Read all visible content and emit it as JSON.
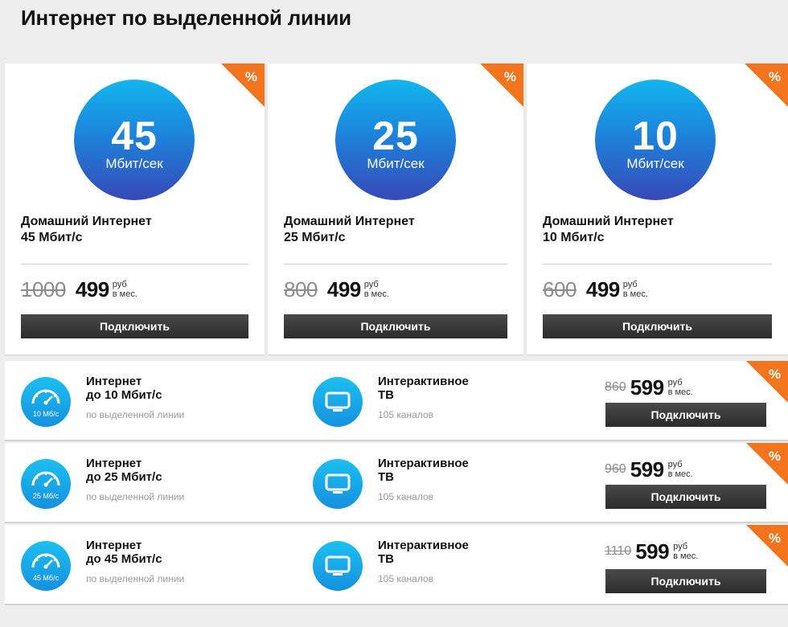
{
  "page": {
    "title": "Интернет по выделенной линии"
  },
  "colors": {
    "accent_orange": "#f3741d",
    "circle_top": "#12b6ef",
    "circle_bottom": "#3749b8",
    "button_dark": "#333333",
    "old_price_grey": "#8c8c8c"
  },
  "tariffs": [
    {
      "speed": "45",
      "speed_unit": "Мбит/сек",
      "name_line1": "Домашний Интернет",
      "name_line2": "45 Мбит/с",
      "old_price": "1000",
      "price": "499",
      "currency": "руб",
      "period": "в мес.",
      "button": "Подключить",
      "badge": "%"
    },
    {
      "speed": "25",
      "speed_unit": "Мбит/сек",
      "name_line1": "Домашний Интернет",
      "name_line2": "25 Мбит/с",
      "old_price": "800",
      "price": "499",
      "currency": "руб",
      "period": "в мес.",
      "button": "Подключить",
      "badge": "%"
    },
    {
      "speed": "10",
      "speed_unit": "Мбит/сек",
      "name_line1": "Домашний Интернет",
      "name_line2": "10 Мбит/с",
      "old_price": "600",
      "price": "499",
      "currency": "руб",
      "period": "в мес.",
      "button": "Подключить",
      "badge": "%"
    }
  ],
  "bundles": [
    {
      "gauge_label": "10 Мб/с",
      "internet_line1": "Интернет",
      "internet_line2": "до 10 Мбит/с",
      "internet_sub": "по выделенной линии",
      "tv_line1": "Интерактивное",
      "tv_line2": "ТВ",
      "tv_sub": "105 каналов",
      "old_price": "860",
      "price": "599",
      "currency": "руб",
      "period": "в мес.",
      "button": "Подключить",
      "badge": "%",
      "gauge_icon": "speedometer-icon",
      "tv_icon": "tv-icon"
    },
    {
      "gauge_label": "25 Мб/с",
      "internet_line1": "Интернет",
      "internet_line2": "до 25 Мбит/с",
      "internet_sub": "по выделенной линии",
      "tv_line1": "Интерактивное",
      "tv_line2": "ТВ",
      "tv_sub": "105 каналов",
      "old_price": "960",
      "price": "599",
      "currency": "руб",
      "period": "в мес.",
      "button": "Подключить",
      "badge": "%",
      "gauge_icon": "speedometer-icon",
      "tv_icon": "tv-icon"
    },
    {
      "gauge_label": "45 Мб/с",
      "internet_line1": "Интернет",
      "internet_line2": "до 45 Мбит/с",
      "internet_sub": "по выделенной линии",
      "tv_line1": "Интерактивное",
      "tv_line2": "ТВ",
      "tv_sub": "105 каналов",
      "old_price": "1110",
      "price": "599",
      "currency": "руб",
      "period": "в мес.",
      "button": "Подключить",
      "badge": "%",
      "gauge_icon": "speedometer-icon",
      "tv_icon": "tv-icon"
    }
  ]
}
